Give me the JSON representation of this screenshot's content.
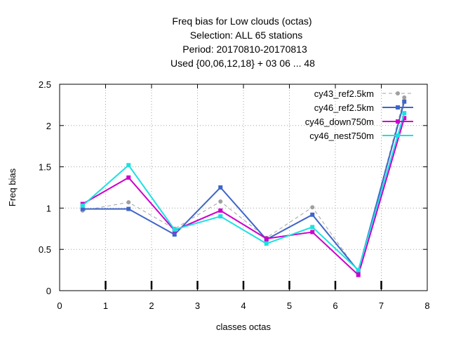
{
  "chart_data": {
    "type": "line",
    "title_lines": [
      "Freq bias  for Low clouds (octas)",
      "Selection: ALL     65 stations",
      "Period: 20170810-20170813",
      "Used {00,06,12,18} + 03 06 ... 48"
    ],
    "xlabel": "classes octas",
    "ylabel": "Freq bias",
    "xlim": [
      0,
      8
    ],
    "ylim": [
      0,
      2.5
    ],
    "x_ticks": [
      "0",
      "1",
      "2",
      "3",
      "4",
      "5",
      "6",
      "7",
      "8"
    ],
    "y_ticks": [
      "0",
      "0.5",
      "1",
      "1.5",
      "2",
      "2.5"
    ],
    "grid": true,
    "legend_position": "top-right",
    "x": [
      0.5,
      1.5,
      2.5,
      3.5,
      4.5,
      5.5,
      6.5,
      7.5
    ],
    "series": [
      {
        "name": "cy43_ref2.5km",
        "color": "#a0a0a0",
        "dash": "dashed",
        "marker": "circle",
        "values": [
          0.97,
          1.07,
          0.75,
          1.08,
          0.64,
          1.01,
          0.23,
          2.34
        ]
      },
      {
        "name": "cy46_ref2.5km",
        "color": "#3f66c8",
        "dash": "solid",
        "marker": "square",
        "values": [
          0.99,
          0.99,
          0.68,
          1.25,
          0.62,
          0.92,
          0.24,
          2.29
        ]
      },
      {
        "name": "cy46_down750m",
        "color": "#cc00cc",
        "dash": "solid",
        "marker": "square",
        "values": [
          1.05,
          1.37,
          0.73,
          0.97,
          0.63,
          0.71,
          0.19,
          2.09
        ]
      },
      {
        "name": "cy46_nest750m",
        "color": "#1ee0e0",
        "dash": "solid",
        "marker": "square",
        "values": [
          1.03,
          1.52,
          0.74,
          0.9,
          0.57,
          0.77,
          0.25,
          2.15
        ]
      }
    ],
    "markers_at_x": [
      1.0,
      2.0,
      3.0,
      4.0,
      5.0,
      6.0,
      7.0
    ]
  }
}
